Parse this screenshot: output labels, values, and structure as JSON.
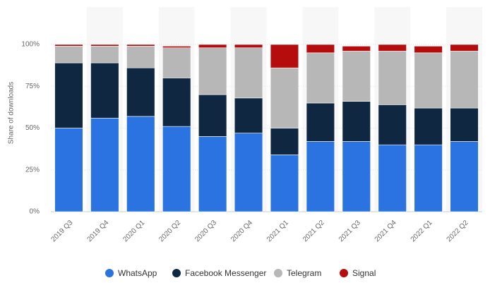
{
  "chart_data": {
    "type": "stacked_bar",
    "y_label": "Share of downloads",
    "categories": [
      "2019 Q3",
      "2019 Q4",
      "2020 Q1",
      "2020 Q2",
      "2020 Q3",
      "2020 Q4",
      "2021 Q1",
      "2021 Q2",
      "2021 Q3",
      "2021 Q4",
      "2022 Q1",
      "2022 Q2"
    ],
    "series": [
      {
        "name": "WhatsApp",
        "color": "#2a73e0",
        "values": [
          50,
          56,
          57,
          51,
          45,
          47,
          34,
          42,
          42,
          40,
          40,
          42
        ]
      },
      {
        "name": "Facebook Messenger",
        "color": "#0f2740",
        "values": [
          39,
          33,
          29,
          29,
          25,
          21,
          16,
          23,
          24,
          24,
          22,
          20
        ]
      },
      {
        "name": "Telegram",
        "color": "#b7b7b7",
        "values": [
          10,
          10,
          13,
          18,
          28,
          30,
          36,
          30,
          30,
          32,
          33,
          34
        ]
      },
      {
        "name": "Signal",
        "color": "#b50d0d",
        "values": [
          1,
          1,
          1,
          1,
          2,
          2,
          14,
          5,
          3,
          4,
          4,
          4
        ]
      }
    ],
    "ylim": [
      0,
      100
    ],
    "yticks": [
      {
        "value": 0,
        "label": "0%"
      },
      {
        "value": 25,
        "label": "25%"
      },
      {
        "value": 50,
        "label": "50%"
      },
      {
        "value": 75,
        "label": "75%"
      },
      {
        "value": 100,
        "label": "100%"
      }
    ],
    "grid": true,
    "legend": "bottom"
  }
}
